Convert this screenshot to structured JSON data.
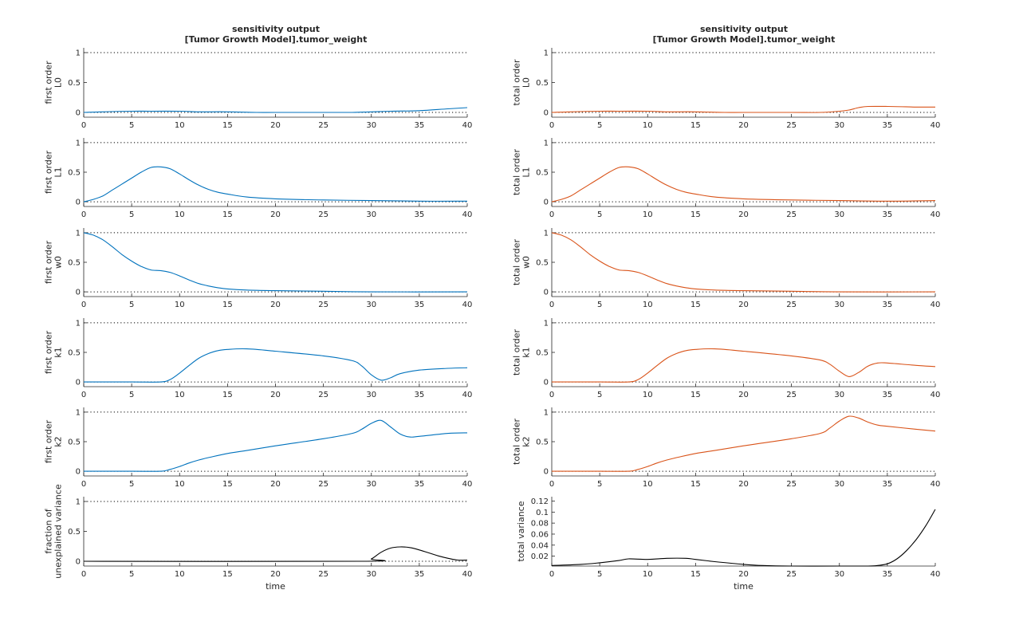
{
  "colors": {
    "first": "#0072BD",
    "total": "#D95319",
    "black": "#000000"
  },
  "columns": {
    "left": {
      "title_line1": "sensitivity output",
      "title_line2": "[Tumor Growth Model].tumor_weight"
    },
    "right": {
      "title_line1": "sensitivity output",
      "title_line2": "[Tumor Growth Model].tumor_weight"
    }
  },
  "x_tick_labels": [
    "0",
    "5",
    "10",
    "15",
    "20",
    "25",
    "30",
    "35",
    "40"
  ],
  "chart_data": [
    {
      "type": "line",
      "ylabel": [
        "first order",
        "L0"
      ],
      "xlabel": "",
      "xlim": [
        0,
        40
      ],
      "ylim": [
        -0.08,
        1.08
      ],
      "yticks": [
        0,
        0.5,
        1
      ],
      "ytick_labels": [
        "0",
        "0.5",
        "1"
      ],
      "ref_lines": [
        0,
        1
      ],
      "color": "first",
      "series": [
        {
          "x": [
            0,
            2,
            5,
            7,
            10,
            12,
            15,
            18,
            20,
            25,
            28,
            30,
            32,
            35,
            38,
            40
          ],
          "y": [
            0,
            0.01,
            0.02,
            0.02,
            0.02,
            0.01,
            0.01,
            0,
            0,
            0,
            0,
            0.01,
            0.02,
            0.03,
            0.06,
            0.08
          ]
        }
      ]
    },
    {
      "type": "line",
      "ylabel": [
        "total order",
        "L0"
      ],
      "xlabel": "",
      "xlim": [
        0,
        40
      ],
      "ylim": [
        -0.08,
        1.08
      ],
      "yticks": [
        0,
        0.5,
        1
      ],
      "ytick_labels": [
        "0",
        "0.5",
        "1"
      ],
      "ref_lines": [
        0,
        1
      ],
      "color": "total",
      "series": [
        {
          "x": [
            0,
            2,
            5,
            7,
            10,
            12,
            15,
            18,
            20,
            25,
            28,
            30,
            31,
            32,
            33,
            35,
            38,
            40
          ],
          "y": [
            0,
            0.01,
            0.02,
            0.02,
            0.02,
            0.01,
            0.01,
            0,
            0,
            0,
            0,
            0.02,
            0.04,
            0.08,
            0.1,
            0.1,
            0.09,
            0.09
          ]
        }
      ]
    },
    {
      "type": "line",
      "ylabel": [
        "first order",
        "L1"
      ],
      "xlabel": "",
      "xlim": [
        0,
        40
      ],
      "ylim": [
        -0.08,
        1.08
      ],
      "yticks": [
        0,
        0.5,
        1
      ],
      "ytick_labels": [
        "0",
        "0.5",
        "1"
      ],
      "ref_lines": [
        0,
        1
      ],
      "color": "first",
      "series": [
        {
          "x": [
            0,
            1,
            2,
            3,
            4,
            5,
            6,
            7,
            8,
            9,
            10,
            11,
            12,
            13,
            14,
            15,
            17,
            20,
            25,
            30,
            35,
            40
          ],
          "y": [
            0,
            0.04,
            0.1,
            0.2,
            0.3,
            0.4,
            0.5,
            0.58,
            0.59,
            0.56,
            0.47,
            0.37,
            0.28,
            0.21,
            0.16,
            0.13,
            0.08,
            0.05,
            0.03,
            0.02,
            0.01,
            0.01
          ]
        }
      ]
    },
    {
      "type": "line",
      "ylabel": [
        "total order",
        "L1"
      ],
      "xlabel": "",
      "xlim": [
        0,
        40
      ],
      "ylim": [
        -0.08,
        1.08
      ],
      "yticks": [
        0,
        0.5,
        1
      ],
      "ytick_labels": [
        "0",
        "0.5",
        "1"
      ],
      "ref_lines": [
        0,
        1
      ],
      "color": "total",
      "series": [
        {
          "x": [
            0,
            1,
            2,
            3,
            4,
            5,
            6,
            7,
            8,
            9,
            10,
            11,
            12,
            13,
            14,
            15,
            17,
            20,
            25,
            30,
            35,
            40
          ],
          "y": [
            0,
            0.04,
            0.1,
            0.2,
            0.3,
            0.4,
            0.5,
            0.58,
            0.59,
            0.56,
            0.47,
            0.37,
            0.28,
            0.21,
            0.16,
            0.13,
            0.08,
            0.05,
            0.03,
            0.02,
            0.01,
            0.02
          ]
        }
      ]
    },
    {
      "type": "line",
      "ylabel": [
        "first order",
        "w0"
      ],
      "xlabel": "",
      "xlim": [
        0,
        40
      ],
      "ylim": [
        -0.08,
        1.08
      ],
      "yticks": [
        0,
        0.5,
        1
      ],
      "ytick_labels": [
        "0",
        "0.5",
        "1"
      ],
      "ref_lines": [
        0,
        1
      ],
      "color": "first",
      "series": [
        {
          "x": [
            0,
            1,
            2,
            3,
            4,
            5,
            6,
            7,
            8,
            9,
            10,
            11,
            12,
            13,
            14,
            15,
            17,
            20,
            25,
            30,
            40
          ],
          "y": [
            1,
            0.96,
            0.88,
            0.76,
            0.63,
            0.52,
            0.43,
            0.37,
            0.36,
            0.33,
            0.27,
            0.2,
            0.14,
            0.1,
            0.07,
            0.05,
            0.03,
            0.02,
            0.01,
            0,
            0
          ]
        }
      ]
    },
    {
      "type": "line",
      "ylabel": [
        "total order",
        "w0"
      ],
      "xlabel": "",
      "xlim": [
        0,
        40
      ],
      "ylim": [
        -0.08,
        1.08
      ],
      "yticks": [
        0,
        0.5,
        1
      ],
      "ytick_labels": [
        "0",
        "0.5",
        "1"
      ],
      "ref_lines": [
        0,
        1
      ],
      "color": "total",
      "series": [
        {
          "x": [
            0,
            1,
            2,
            3,
            4,
            5,
            6,
            7,
            8,
            9,
            10,
            11,
            12,
            13,
            14,
            15,
            17,
            20,
            25,
            30,
            40
          ],
          "y": [
            1,
            0.96,
            0.88,
            0.76,
            0.63,
            0.52,
            0.43,
            0.37,
            0.36,
            0.33,
            0.27,
            0.2,
            0.14,
            0.1,
            0.07,
            0.05,
            0.03,
            0.02,
            0.01,
            0,
            0
          ]
        }
      ]
    },
    {
      "type": "line",
      "ylabel": [
        "first order",
        "k1"
      ],
      "xlabel": "",
      "xlim": [
        0,
        40
      ],
      "ylim": [
        -0.08,
        1.08
      ],
      "yticks": [
        0,
        0.5,
        1
      ],
      "ytick_labels": [
        "0",
        "0.5",
        "1"
      ],
      "ref_lines": [
        0,
        1
      ],
      "color": "first",
      "series": [
        {
          "x": [
            0,
            5,
            8,
            9,
            10,
            11,
            12,
            13,
            14,
            15,
            17,
            20,
            25,
            28,
            29,
            30,
            31,
            32,
            33,
            35,
            38,
            40
          ],
          "y": [
            0,
            0,
            0,
            0.04,
            0.15,
            0.28,
            0.4,
            0.48,
            0.53,
            0.55,
            0.56,
            0.52,
            0.44,
            0.36,
            0.27,
            0.12,
            0.03,
            0.07,
            0.14,
            0.2,
            0.23,
            0.24
          ]
        }
      ]
    },
    {
      "type": "line",
      "ylabel": [
        "total order",
        "k1"
      ],
      "xlabel": "",
      "xlim": [
        0,
        40
      ],
      "ylim": [
        -0.08,
        1.08
      ],
      "yticks": [
        0,
        0.5,
        1
      ],
      "ytick_labels": [
        "0",
        "0.5",
        "1"
      ],
      "ref_lines": [
        0,
        1
      ],
      "color": "total",
      "series": [
        {
          "x": [
            0,
            5,
            8,
            9,
            10,
            11,
            12,
            13,
            14,
            15,
            17,
            20,
            25,
            28,
            29,
            30,
            31,
            32,
            33,
            34,
            35,
            38,
            40
          ],
          "y": [
            0,
            0,
            0,
            0.04,
            0.15,
            0.28,
            0.4,
            0.48,
            0.53,
            0.55,
            0.56,
            0.52,
            0.44,
            0.37,
            0.3,
            0.18,
            0.09,
            0.16,
            0.27,
            0.32,
            0.32,
            0.28,
            0.26
          ]
        }
      ]
    },
    {
      "type": "line",
      "ylabel": [
        "first order",
        "k2"
      ],
      "xlabel": "",
      "xlim": [
        0,
        40
      ],
      "ylim": [
        -0.08,
        1.08
      ],
      "yticks": [
        0,
        0.5,
        1
      ],
      "ytick_labels": [
        "0",
        "0.5",
        "1"
      ],
      "ref_lines": [
        0,
        1
      ],
      "color": "first",
      "series": [
        {
          "x": [
            0,
            5,
            8,
            9,
            10,
            11,
            12,
            13,
            15,
            17,
            20,
            25,
            28,
            29,
            30,
            31,
            32,
            33,
            34,
            35,
            38,
            40
          ],
          "y": [
            0,
            0,
            0,
            0.03,
            0.08,
            0.14,
            0.19,
            0.23,
            0.3,
            0.35,
            0.43,
            0.55,
            0.64,
            0.71,
            0.81,
            0.86,
            0.75,
            0.63,
            0.58,
            0.59,
            0.64,
            0.65
          ]
        }
      ]
    },
    {
      "type": "line",
      "ylabel": [
        "total order",
        "k2"
      ],
      "xlabel": "",
      "xlim": [
        0,
        40
      ],
      "ylim": [
        -0.08,
        1.08
      ],
      "yticks": [
        0,
        0.5,
        1
      ],
      "ytick_labels": [
        "0",
        "0.5",
        "1"
      ],
      "ref_lines": [
        0,
        1
      ],
      "color": "total",
      "series": [
        {
          "x": [
            0,
            5,
            8,
            9,
            10,
            11,
            12,
            13,
            15,
            17,
            20,
            25,
            28,
            29,
            30,
            31,
            32,
            33,
            34,
            35,
            38,
            40
          ],
          "y": [
            0,
            0,
            0,
            0.03,
            0.08,
            0.14,
            0.19,
            0.23,
            0.3,
            0.35,
            0.43,
            0.55,
            0.64,
            0.73,
            0.85,
            0.93,
            0.9,
            0.83,
            0.78,
            0.76,
            0.71,
            0.68
          ]
        }
      ]
    },
    {
      "type": "line",
      "ylabel": [
        "fraction of",
        "unexplained variance"
      ],
      "xlabel": "time",
      "xlim": [
        0,
        40
      ],
      "ylim": [
        -0.08,
        1.08
      ],
      "yticks": [
        0,
        0.5,
        1
      ],
      "ytick_labels": [
        "0",
        "0.5",
        "1"
      ],
      "ref_lines": [
        0,
        1
      ],
      "color": "black",
      "series": [
        {
          "x": [
            0,
            29,
            30,
            31,
            32,
            33,
            34,
            35,
            36,
            37,
            38,
            39,
            40
          ],
          "y": [
            0,
            0,
            0.04,
            0.15,
            0.22,
            0.24,
            0.23,
            0.19,
            0.14,
            0.09,
            0.05,
            0.02,
            0.02
          ]
        }
      ]
    },
    {
      "type": "line",
      "ylabel": [
        "total variance"
      ],
      "xlabel": "time",
      "xlim": [
        0,
        40
      ],
      "ylim": [
        0.002,
        0.128
      ],
      "yticks": [
        0.02,
        0.04,
        0.06,
        0.08,
        0.1,
        0.12
      ],
      "ytick_labels": [
        "0.02",
        "0.04",
        "0.06",
        "0.08",
        "0.1",
        "0.12"
      ],
      "ref_lines": [],
      "color": "black",
      "series": [
        {
          "x": [
            0,
            3,
            5,
            7,
            8,
            10,
            12,
            14,
            15,
            17,
            20,
            22,
            25,
            30,
            33,
            34,
            35,
            36,
            37,
            38,
            39,
            40
          ],
          "y": [
            0.003,
            0.005,
            0.008,
            0.012,
            0.015,
            0.014,
            0.016,
            0.016,
            0.014,
            0.01,
            0.005,
            0.003,
            0.002,
            0.002,
            0.002,
            0.003,
            0.006,
            0.015,
            0.03,
            0.05,
            0.075,
            0.105
          ]
        }
      ]
    }
  ]
}
